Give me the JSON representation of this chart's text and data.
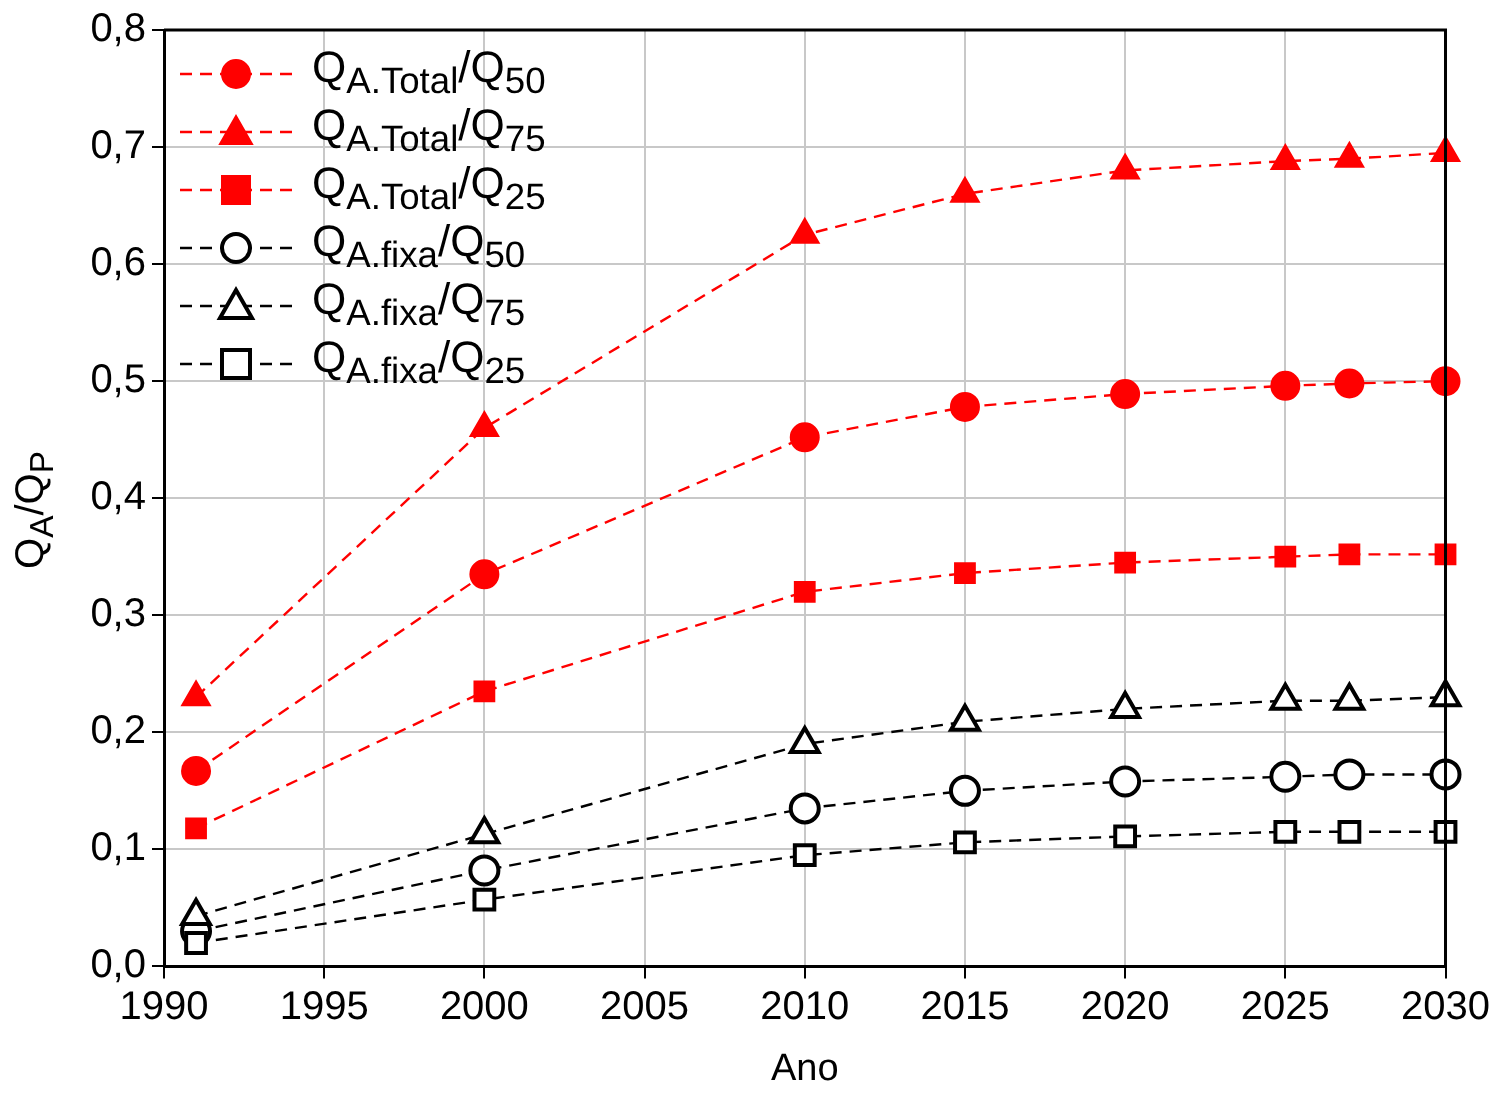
{
  "chart_data": {
    "type": "line",
    "xlabel": "Ano",
    "ylabel": "Q$_{A}$/Q$_{P}$",
    "x": [
      1991,
      2000,
      2010,
      2015,
      2020,
      2025,
      2027,
      2030
    ],
    "series": [
      {
        "name": "Q$_{A.Total}$/Q$_{50}$",
        "color": "#ff0000",
        "marker": "circle",
        "values": [
          0.167,
          0.335,
          0.452,
          0.478,
          0.489,
          0.496,
          0.498,
          0.5
        ]
      },
      {
        "name": "Q$_{A.Total}$/Q$_{75}$",
        "color": "#ff0000",
        "marker": "triangle",
        "values": [
          0.23,
          0.46,
          0.625,
          0.66,
          0.68,
          0.688,
          0.69,
          0.695
        ]
      },
      {
        "name": "Q$_{A.Total}$/Q$_{25}$",
        "color": "#ff0000",
        "marker": "square",
        "values": [
          0.118,
          0.235,
          0.32,
          0.336,
          0.345,
          0.35,
          0.352,
          0.352
        ]
      },
      {
        "name": "Q$_{A.fixa}$/Q$_{50}$",
        "color": "#000000",
        "marker": "circle",
        "values": [
          0.03,
          0.082,
          0.135,
          0.15,
          0.158,
          0.162,
          0.164,
          0.164
        ]
      },
      {
        "name": "Q$_{A.fixa}$/Q$_{75}$",
        "color": "#000000",
        "marker": "triangle",
        "values": [
          0.043,
          0.113,
          0.19,
          0.209,
          0.22,
          0.227,
          0.227,
          0.23
        ]
      },
      {
        "name": "Q$_{A.fixa}$/Q$_{25}$",
        "color": "#000000",
        "marker": "square",
        "values": [
          0.02,
          0.057,
          0.095,
          0.106,
          0.111,
          0.115,
          0.115,
          0.115
        ]
      }
    ],
    "xlim": [
      1990,
      2030
    ],
    "xticks": [
      1990,
      1995,
      2000,
      2005,
      2010,
      2015,
      2020,
      2025,
      2030
    ],
    "ylim": [
      0,
      0.8
    ],
    "yticks": [
      {
        "value": 0,
        "label": "0,0"
      },
      {
        "value": 0.1,
        "label": "0,1"
      },
      {
        "value": 0.2,
        "label": "0,2"
      },
      {
        "value": 0.3,
        "label": "0,3"
      },
      {
        "value": 0.4,
        "label": "0,4"
      },
      {
        "value": 0.5,
        "label": "0,5"
      },
      {
        "value": 0.6,
        "label": "0,6"
      },
      {
        "value": 0.7,
        "label": "0,7"
      },
      {
        "value": 0.8,
        "label": "0,8"
      }
    ],
    "grid": true,
    "legend": "top left",
    "line_style": "dashed"
  }
}
